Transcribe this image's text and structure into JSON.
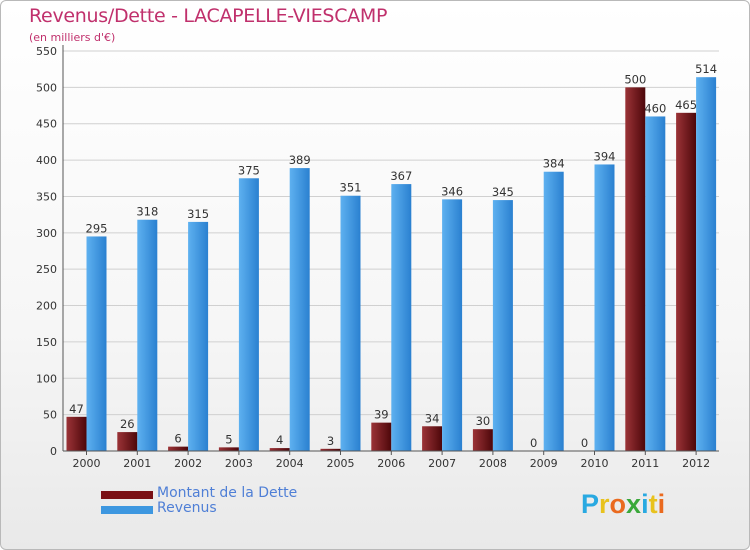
{
  "title": "Revenus/Dette - LACAPELLE-VIESCAMP",
  "subtitle": "(en milliers d'€)",
  "logo": {
    "text": "Proxiti",
    "letters": [
      {
        "ch": "P",
        "color": "#29a9e1"
      },
      {
        "ch": "r",
        "color": "#e8c21d"
      },
      {
        "ch": "o",
        "color": "#ea6a1f"
      },
      {
        "ch": "x",
        "color": "#3aa83a"
      },
      {
        "ch": "i",
        "color": "#29a9e1"
      },
      {
        "ch": "t",
        "color": "#e8c21d"
      },
      {
        "ch": "i",
        "color": "#ea6a1f"
      }
    ]
  },
  "legend": [
    {
      "label": "Montant de la Dette",
      "color": "#7a1015"
    },
    {
      "label": "Revenus",
      "color": "#3d97e0"
    }
  ],
  "colors": {
    "title": "#c0306c",
    "dette_dark": "#4d070a",
    "dette_light": "#9b3337",
    "revenus_dark": "#2a80d0",
    "revenus_light": "#5eb1f0",
    "grid": "#d0d0d0",
    "axis_text": "#333333"
  },
  "chart_data": {
    "type": "bar",
    "title": "Revenus/Dette - LACAPELLE-VIESCAMP",
    "subtitle": "(en milliers d'€)",
    "categories": [
      "2000",
      "2001",
      "2002",
      "2003",
      "2004",
      "2005",
      "2006",
      "2007",
      "2008",
      "2009",
      "2010",
      "2011",
      "2012"
    ],
    "series": [
      {
        "name": "Montant de la Dette",
        "values": [
          47,
          26,
          6,
          5,
          4,
          3,
          39,
          34,
          30,
          0,
          0,
          500,
          465
        ]
      },
      {
        "name": "Revenus",
        "values": [
          295,
          318,
          315,
          375,
          389,
          351,
          367,
          346,
          345,
          384,
          394,
          460,
          514
        ]
      }
    ],
    "ylim": [
      0,
      550
    ],
    "yticks": [
      0,
      50,
      100,
      150,
      200,
      250,
      300,
      350,
      400,
      450,
      500,
      550
    ],
    "grid": true,
    "legend_position": "bottom-left"
  }
}
